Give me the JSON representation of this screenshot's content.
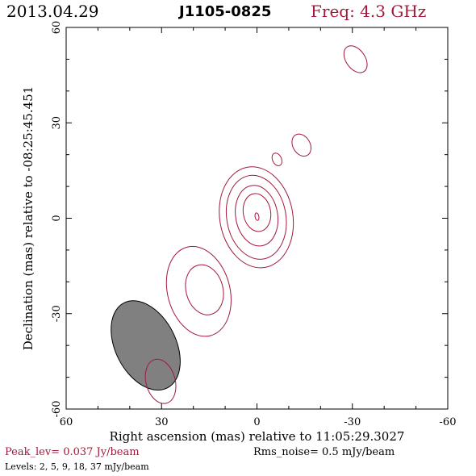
{
  "header": {
    "date": "2013.04.29",
    "source": "J1105-0825",
    "frequency": "Freq: 4.3 GHz"
  },
  "footer": {
    "peak": "Peak_lev=  0.037 Jy/beam",
    "rms": "Rms_noise=   0.5 mJy/beam",
    "levels": "Levels:   2,    5,    9,   18,   37 mJy/beam"
  },
  "colors": {
    "contour": "#a3183a",
    "beam": "#808080"
  },
  "chart_data": {
    "type": "contour",
    "title": "",
    "xlabel": "Right ascension (mas) relative to 11:05:29.3027",
    "ylabel": "Declination (mas) relative to -08:25:45.451",
    "xlim": [
      60,
      -60
    ],
    "ylim": [
      -60,
      60
    ],
    "xticks": [
      60,
      30,
      0,
      -30,
      -60
    ],
    "yticks": [
      -60,
      -30,
      0,
      30,
      60
    ],
    "contour_levels_mJy": [
      2,
      5,
      9,
      18,
      37
    ],
    "beam": {
      "x": 35,
      "y": -40,
      "major": 30,
      "minor": 19,
      "pa_deg": -27
    },
    "contours": [
      {
        "x": 0.2,
        "y": 0.3,
        "rx": 11.5,
        "ry": 16.0,
        "angle": -10,
        "component": "core"
      },
      {
        "x": 0.2,
        "y": 0.3,
        "rx": 9.3,
        "ry": 13.3,
        "angle": -10,
        "component": "core"
      },
      {
        "x": 0.1,
        "y": 0.8,
        "rx": 6.6,
        "ry": 9.6,
        "angle": -10,
        "component": "core"
      },
      {
        "x": 0.0,
        "y": 1.8,
        "rx": 4.3,
        "ry": 6.0,
        "angle": -10,
        "component": "core"
      },
      {
        "x": 0.0,
        "y": 0.5,
        "rx": 0.6,
        "ry": 1.2,
        "angle": -10,
        "component": "core"
      },
      {
        "x": 16.5,
        "y": -22.5,
        "rx": 5.8,
        "ry": 8.0,
        "angle": -15,
        "component": "jet"
      },
      {
        "x": 18.3,
        "y": -23.0,
        "rx": 9.8,
        "ry": 14.4,
        "angle": -15,
        "component": "jet"
      },
      {
        "x": 30.3,
        "y": -51.3,
        "rx": 4.6,
        "ry": 7.1,
        "angle": -15,
        "component": "jet"
      },
      {
        "x": -6.3,
        "y": 18.5,
        "rx": 1.4,
        "ry": 2.1,
        "angle": -25,
        "component": "counterjet"
      },
      {
        "x": -14.0,
        "y": 23.0,
        "rx": 2.7,
        "ry": 3.7,
        "angle": -30,
        "component": "counterjet"
      },
      {
        "x": -31.0,
        "y": 50.0,
        "rx": 3.0,
        "ry": 4.7,
        "angle": -35,
        "component": "counterjet"
      }
    ]
  }
}
